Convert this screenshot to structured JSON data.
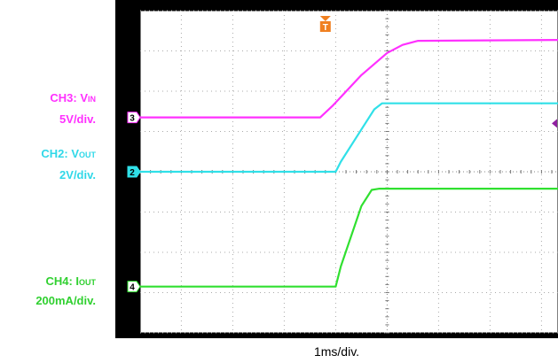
{
  "chart_data": {
    "type": "line",
    "title": "",
    "xlabel": "1ms/div.",
    "grid": true,
    "x_divisions": 10,
    "y_divisions": 8,
    "xlim_div": [
      -4.8,
      4.2
    ],
    "ylim_div": [
      -4,
      4
    ],
    "trigger_marker": {
      "label": "T",
      "x_div": -1.2,
      "color": "#f08020"
    },
    "series": [
      {
        "channel": "3",
        "name": "CH3: V",
        "name_sub": "IN",
        "scale": "5V/div.",
        "color": "#ff30ff",
        "points": [
          [
            -4.8,
            1.35
          ],
          [
            -1.3,
            1.35
          ],
          [
            -1.05,
            1.65
          ],
          [
            -0.5,
            2.4
          ],
          [
            0.0,
            2.95
          ],
          [
            0.3,
            3.15
          ],
          [
            0.6,
            3.25
          ],
          [
            4.2,
            3.28
          ]
        ],
        "ground_div": 1.35
      },
      {
        "channel": "2",
        "name": "CH2: V",
        "name_sub": "OUT",
        "scale": "2V/div.",
        "color": "#30e0e8",
        "points": [
          [
            -4.8,
            0.0
          ],
          [
            -1.0,
            0.0
          ],
          [
            -0.9,
            0.25
          ],
          [
            -0.5,
            1.05
          ],
          [
            -0.25,
            1.55
          ],
          [
            -0.1,
            1.7
          ],
          [
            4.2,
            1.7
          ]
        ],
        "ground_div": 0.0
      },
      {
        "channel": "4",
        "name": "CH4: I",
        "name_sub": "OUT",
        "scale": "200mA/div.",
        "color": "#30e030",
        "points": [
          [
            -4.8,
            -2.85
          ],
          [
            -1.0,
            -2.85
          ],
          [
            -0.9,
            -2.35
          ],
          [
            -0.5,
            -0.85
          ],
          [
            -0.3,
            -0.45
          ],
          [
            -0.15,
            -0.42
          ],
          [
            4.2,
            -0.42
          ]
        ],
        "ground_div": -2.85
      }
    ],
    "right_marker": {
      "y_div": 1.2,
      "color": "#9020a0"
    }
  }
}
